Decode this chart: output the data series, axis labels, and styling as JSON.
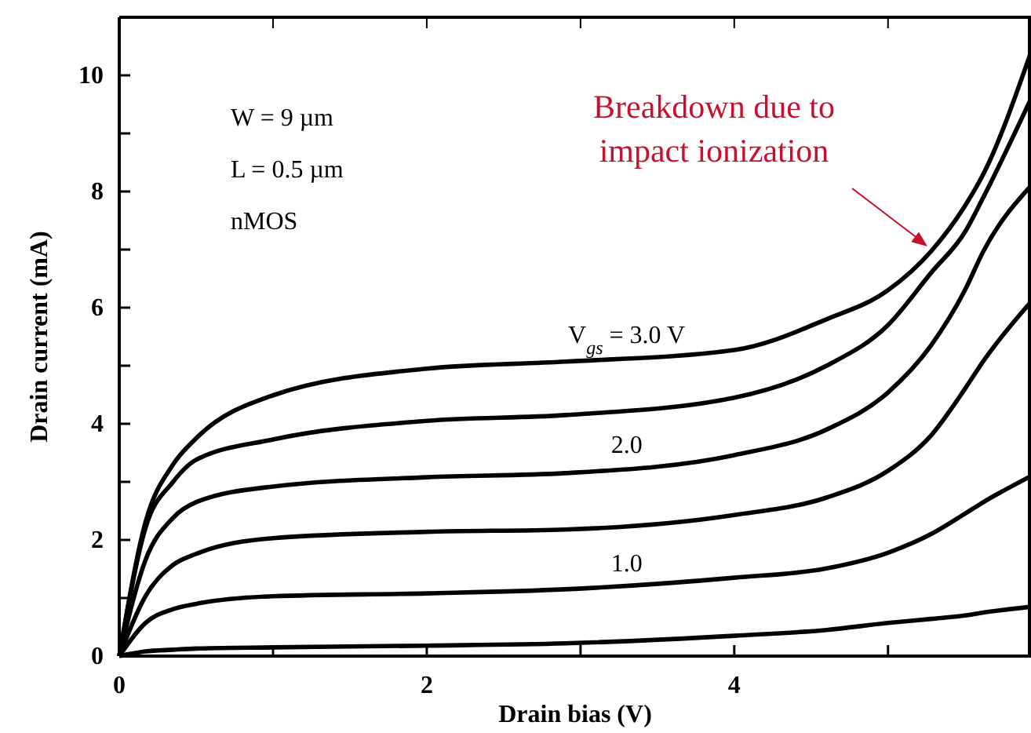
{
  "chart_data": {
    "type": "line",
    "xlabel": "Drain bias (V)",
    "ylabel": "Drain current (mA)",
    "xlim": [
      0,
      5.93
    ],
    "ylim": [
      0,
      11
    ],
    "xticks": [
      0,
      {
        "value": 1,
        "label": null
      },
      2,
      {
        "value": 3,
        "label": null
      },
      4,
      {
        "value": 5,
        "label": null
      }
    ],
    "yticks": [
      0,
      {
        "value": 1,
        "label": null
      },
      2,
      {
        "value": 3,
        "label": null
      },
      4,
      {
        "value": 5,
        "label": null
      },
      6,
      {
        "value": 7,
        "label": null
      },
      8,
      {
        "value": 9,
        "label": null
      },
      10
    ],
    "grid": false,
    "legend": false,
    "marker": "none",
    "line_style": "solid",
    "x": [
      0,
      0.17,
      0.35,
      0.5,
      1,
      2,
      2.9,
      4,
      4.6,
      5,
      5.28,
      5.5,
      5.62,
      5.93
    ],
    "series": [
      {
        "name": "V$_{gs}$ = 3.0 V",
        "color": "#000000",
        "values": [
          0,
          2.3,
          3.3,
          3.75,
          4.49,
          4.95,
          5.07,
          5.27,
          5.8,
          6.3,
          6.97,
          7.75,
          8.3,
          10.4
        ]
      },
      {
        "color": "#000000",
        "values": [
          0,
          2.2,
          3.0,
          3.38,
          3.73,
          4.05,
          4.15,
          4.45,
          5.0,
          5.7,
          6.6,
          7.3,
          7.9,
          9.6
        ]
      },
      {
        "name": "2.0",
        "color": "#000000",
        "values": [
          0,
          1.65,
          2.38,
          2.65,
          2.92,
          3.08,
          3.15,
          3.46,
          3.9,
          4.54,
          5.35,
          6.3,
          6.97,
          8.1
        ]
      },
      {
        "color": "#000000",
        "values": [
          0,
          1.03,
          1.57,
          1.76,
          2.03,
          2.14,
          2.18,
          2.43,
          2.73,
          3.19,
          3.8,
          4.6,
          5.08,
          6.1
        ]
      },
      {
        "name": "1.0",
        "color": "#000000",
        "values": [
          0,
          0.57,
          0.81,
          0.9,
          1.03,
          1.08,
          1.15,
          1.35,
          1.51,
          1.78,
          2.1,
          2.45,
          2.65,
          3.1
        ]
      },
      {
        "color": "#000000",
        "values": [
          0,
          0.08,
          0.11,
          0.13,
          0.15,
          0.18,
          0.22,
          0.35,
          0.45,
          0.57,
          0.64,
          0.7,
          0.75,
          0.85
        ]
      }
    ],
    "annotations": [
      "W = 9 µm",
      "L = 0.5 µm",
      "nMOS",
      "Breakdown due to impact ionization"
    ]
  }
}
